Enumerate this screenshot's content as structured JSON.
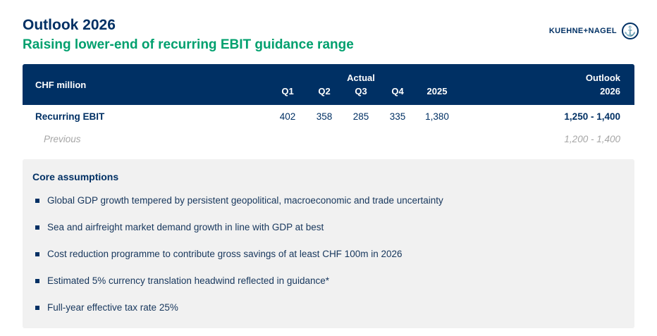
{
  "header": {
    "title": "Outlook 2026",
    "subtitle": "Raising lower-end of recurring EBIT guidance range",
    "logo_text": "KUEHNE+NAGEL",
    "logo_icon": "anchor-icon"
  },
  "table": {
    "unit_label": "CHF million",
    "group_label": "Actual",
    "columns": [
      "Q1",
      "Q2",
      "Q3",
      "Q4",
      "2025"
    ],
    "outlook_label_line1": "Outlook",
    "outlook_label_line2": "2026",
    "rows": [
      {
        "label": "Recurring EBIT",
        "values": [
          "402",
          "358",
          "285",
          "335",
          "1,380"
        ],
        "outlook": "1,250 - 1,400"
      },
      {
        "label": "Previous",
        "values": [
          "",
          "",
          "",
          "",
          ""
        ],
        "outlook": "1,200 - 1,400"
      }
    ]
  },
  "assumptions": {
    "heading": "Core assumptions",
    "bullets": [
      "Global GDP growth tempered by persistent geopolitical, macroeconomic and trade uncertainty",
      "Sea and airfreight market demand growth in line with GDP at best",
      "Cost reduction programme to contribute gross savings of at least CHF 100m in 2026",
      "Estimated 5% currency translation headwind reflected in guidance*",
      "Full-year effective tax rate 25%"
    ]
  },
  "colors": {
    "navy": "#003064",
    "green": "#00A06E",
    "panel_bg": "#F1F1F1",
    "previous_gray": "#A6A6A6"
  }
}
